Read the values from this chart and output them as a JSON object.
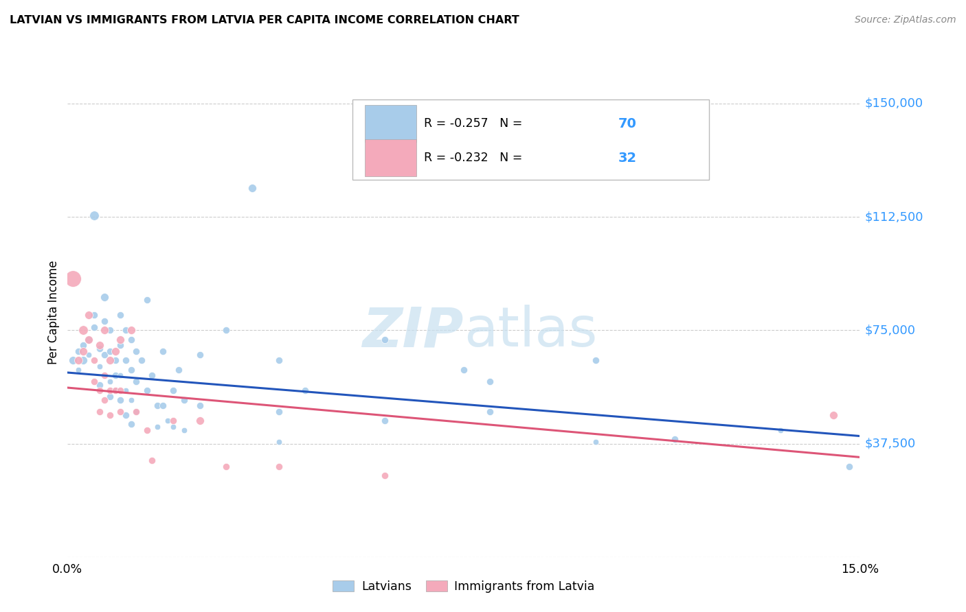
{
  "title": "LATVIAN VS IMMIGRANTS FROM LATVIA PER CAPITA INCOME CORRELATION CHART",
  "source": "Source: ZipAtlas.com",
  "ylabel": "Per Capita Income",
  "yticks": [
    0,
    37500,
    75000,
    112500,
    150000
  ],
  "ytick_labels": [
    "",
    "$37,500",
    "$75,000",
    "$112,500",
    "$150,000"
  ],
  "xmin": 0.0,
  "xmax": 0.15,
  "ymin": 0,
  "ymax": 162000,
  "legend_blue_r": "-0.257",
  "legend_blue_n": "70",
  "legend_pink_r": "-0.232",
  "legend_pink_n": "32",
  "legend_label_blue": "Latvians",
  "legend_label_pink": "Immigrants from Latvia",
  "watermark_zip": "ZIP",
  "watermark_atlas": "atlas",
  "blue_color": "#A8CCEA",
  "pink_color": "#F4AABB",
  "line_blue": "#2255BB",
  "line_pink": "#DD5577",
  "blue_line_x0": 0.0,
  "blue_line_y0": 61000,
  "blue_line_x1": 0.15,
  "blue_line_y1": 40000,
  "pink_line_x0": 0.0,
  "pink_line_y0": 56000,
  "pink_line_x1": 0.15,
  "pink_line_y1": 33000,
  "blue_points": [
    [
      0.001,
      65000,
      7
    ],
    [
      0.002,
      68000,
      6
    ],
    [
      0.002,
      62000,
      5
    ],
    [
      0.003,
      70000,
      6
    ],
    [
      0.003,
      65000,
      7
    ],
    [
      0.004,
      72000,
      6
    ],
    [
      0.004,
      67000,
      5
    ],
    [
      0.005,
      113000,
      8
    ],
    [
      0.005,
      80000,
      6
    ],
    [
      0.005,
      76000,
      6
    ],
    [
      0.006,
      69000,
      6
    ],
    [
      0.006,
      63000,
      5
    ],
    [
      0.006,
      57000,
      6
    ],
    [
      0.007,
      86000,
      7
    ],
    [
      0.007,
      78000,
      6
    ],
    [
      0.007,
      67000,
      6
    ],
    [
      0.008,
      75000,
      6
    ],
    [
      0.008,
      68000,
      6
    ],
    [
      0.008,
      58000,
      5
    ],
    [
      0.008,
      53000,
      6
    ],
    [
      0.009,
      65000,
      6
    ],
    [
      0.009,
      60000,
      6
    ],
    [
      0.009,
      55000,
      5
    ],
    [
      0.01,
      80000,
      6
    ],
    [
      0.01,
      70000,
      6
    ],
    [
      0.01,
      60000,
      5
    ],
    [
      0.01,
      52000,
      6
    ],
    [
      0.011,
      75000,
      6
    ],
    [
      0.011,
      65000,
      6
    ],
    [
      0.011,
      55000,
      5
    ],
    [
      0.011,
      47000,
      6
    ],
    [
      0.012,
      72000,
      6
    ],
    [
      0.012,
      62000,
      6
    ],
    [
      0.012,
      52000,
      5
    ],
    [
      0.012,
      44000,
      6
    ],
    [
      0.013,
      68000,
      6
    ],
    [
      0.013,
      58000,
      6
    ],
    [
      0.013,
      48000,
      5
    ],
    [
      0.014,
      65000,
      6
    ],
    [
      0.015,
      85000,
      6
    ],
    [
      0.015,
      55000,
      6
    ],
    [
      0.016,
      60000,
      6
    ],
    [
      0.017,
      50000,
      6
    ],
    [
      0.017,
      43000,
      5
    ],
    [
      0.018,
      68000,
      6
    ],
    [
      0.018,
      50000,
      6
    ],
    [
      0.019,
      45000,
      5
    ],
    [
      0.02,
      55000,
      6
    ],
    [
      0.02,
      43000,
      5
    ],
    [
      0.021,
      62000,
      6
    ],
    [
      0.022,
      52000,
      6
    ],
    [
      0.022,
      42000,
      5
    ],
    [
      0.025,
      67000,
      6
    ],
    [
      0.025,
      50000,
      6
    ],
    [
      0.03,
      75000,
      6
    ],
    [
      0.035,
      122000,
      7
    ],
    [
      0.04,
      65000,
      6
    ],
    [
      0.04,
      48000,
      6
    ],
    [
      0.04,
      38000,
      5
    ],
    [
      0.045,
      55000,
      6
    ],
    [
      0.06,
      72000,
      6
    ],
    [
      0.06,
      45000,
      6
    ],
    [
      0.075,
      62000,
      6
    ],
    [
      0.08,
      58000,
      6
    ],
    [
      0.08,
      48000,
      6
    ],
    [
      0.1,
      65000,
      6
    ],
    [
      0.1,
      38000,
      5
    ],
    [
      0.115,
      39000,
      6
    ],
    [
      0.135,
      42000,
      5
    ],
    [
      0.148,
      30000,
      6
    ]
  ],
  "pink_points": [
    [
      0.001,
      92000,
      14
    ],
    [
      0.002,
      65000,
      7
    ],
    [
      0.003,
      75000,
      8
    ],
    [
      0.003,
      68000,
      7
    ],
    [
      0.004,
      80000,
      7
    ],
    [
      0.004,
      72000,
      7
    ],
    [
      0.005,
      65000,
      6
    ],
    [
      0.005,
      58000,
      6
    ],
    [
      0.006,
      70000,
      7
    ],
    [
      0.006,
      55000,
      6
    ],
    [
      0.006,
      48000,
      6
    ],
    [
      0.007,
      75000,
      7
    ],
    [
      0.007,
      60000,
      6
    ],
    [
      0.007,
      52000,
      6
    ],
    [
      0.008,
      65000,
      7
    ],
    [
      0.008,
      55000,
      6
    ],
    [
      0.008,
      47000,
      6
    ],
    [
      0.009,
      68000,
      7
    ],
    [
      0.009,
      55000,
      6
    ],
    [
      0.01,
      72000,
      7
    ],
    [
      0.01,
      55000,
      6
    ],
    [
      0.01,
      48000,
      6
    ],
    [
      0.012,
      75000,
      7
    ],
    [
      0.013,
      48000,
      6
    ],
    [
      0.015,
      42000,
      6
    ],
    [
      0.016,
      32000,
      6
    ],
    [
      0.02,
      45000,
      6
    ],
    [
      0.025,
      45000,
      7
    ],
    [
      0.03,
      30000,
      6
    ],
    [
      0.04,
      30000,
      6
    ],
    [
      0.06,
      27000,
      6
    ],
    [
      0.145,
      47000,
      7
    ]
  ]
}
